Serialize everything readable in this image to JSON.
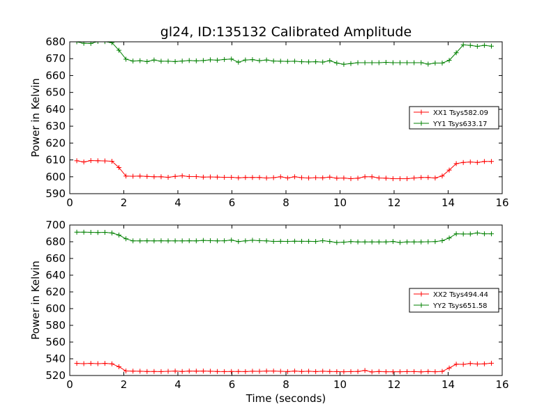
{
  "figure": {
    "title": "gl24, ID:135132 Calibrated Amplitude",
    "xlabel": "Time (seconds)"
  },
  "chart_data": [
    {
      "type": "line",
      "ylabel": "Power in Kelvin",
      "xlim": [
        0,
        16
      ],
      "ylim": [
        590,
        680
      ],
      "xticks": [
        0,
        2,
        4,
        6,
        8,
        10,
        12,
        14,
        16
      ],
      "yticks": [
        590,
        600,
        610,
        620,
        630,
        640,
        650,
        660,
        670,
        680
      ],
      "grid": false,
      "legend_position": "center-right",
      "x": [
        0.26,
        0.52,
        0.78,
        1.04,
        1.3,
        1.56,
        1.82,
        2.08,
        2.34,
        2.6,
        2.86,
        3.12,
        3.38,
        3.64,
        3.9,
        4.16,
        4.42,
        4.68,
        4.94,
        5.2,
        5.46,
        5.72,
        5.98,
        6.24,
        6.5,
        6.76,
        7.02,
        7.28,
        7.54,
        7.8,
        8.06,
        8.32,
        8.58,
        8.84,
        9.1,
        9.36,
        9.62,
        9.88,
        10.14,
        10.4,
        10.66,
        10.92,
        11.18,
        11.44,
        11.7,
        11.96,
        12.22,
        12.48,
        12.74,
        13.0,
        13.26,
        13.52,
        13.78,
        14.04,
        14.3,
        14.56,
        14.82,
        15.08,
        15.34,
        15.6
      ],
      "series": [
        {
          "name": "XX1 Tsys582.09",
          "color": "#ff0000",
          "values": [
            609.5,
            608.8,
            609.6,
            609.5,
            609.4,
            609.2,
            605.5,
            600.4,
            600.3,
            600.4,
            600.2,
            600.0,
            600.0,
            599.7,
            600.2,
            600.6,
            600.1,
            600.1,
            599.8,
            599.9,
            599.8,
            599.7,
            599.7,
            599.4,
            599.6,
            599.6,
            599.6,
            599.3,
            599.5,
            600.0,
            599.3,
            600.0,
            599.5,
            599.3,
            599.5,
            599.4,
            599.8,
            599.2,
            599.3,
            598.9,
            599.2,
            600.0,
            600.0,
            599.3,
            599.2,
            598.9,
            598.9,
            598.9,
            599.3,
            599.6,
            599.6,
            599.3,
            600.5,
            604.0,
            607.8,
            608.5,
            608.8,
            608.5,
            609.1,
            609.1
          ]
        },
        {
          "name": "YY1 Tsys633.17",
          "color": "#008000",
          "values": [
            680.0,
            679.1,
            679.0,
            680.2,
            680.1,
            679.5,
            675.0,
            669.7,
            668.6,
            668.8,
            668.3,
            669.2,
            668.5,
            668.5,
            668.3,
            668.6,
            668.9,
            668.7,
            668.9,
            669.3,
            669.1,
            669.5,
            669.8,
            667.9,
            669.2,
            669.4,
            668.8,
            669.2,
            668.6,
            668.5,
            668.4,
            668.5,
            668.2,
            668.1,
            668.2,
            668.0,
            668.8,
            667.4,
            666.7,
            667.1,
            667.6,
            667.6,
            667.6,
            667.6,
            667.8,
            667.6,
            667.6,
            667.6,
            667.6,
            667.6,
            666.8,
            667.4,
            667.4,
            669.0,
            673.5,
            678.2,
            677.9,
            677.3,
            677.9,
            677.4
          ]
        }
      ]
    },
    {
      "type": "line",
      "ylabel": "Power in Kelvin",
      "xlabel": "Time (seconds)",
      "xlim": [
        0,
        16
      ],
      "ylim": [
        520,
        700
      ],
      "xticks": [
        0,
        2,
        4,
        6,
        8,
        10,
        12,
        14,
        16
      ],
      "yticks": [
        520,
        540,
        560,
        580,
        600,
        620,
        640,
        660,
        680,
        700
      ],
      "grid": false,
      "legend_position": "center-right",
      "x": [
        0.26,
        0.52,
        0.78,
        1.04,
        1.3,
        1.56,
        1.82,
        2.08,
        2.34,
        2.6,
        2.86,
        3.12,
        3.38,
        3.64,
        3.9,
        4.16,
        4.42,
        4.68,
        4.94,
        5.2,
        5.46,
        5.72,
        5.98,
        6.24,
        6.5,
        6.76,
        7.02,
        7.28,
        7.54,
        7.8,
        8.06,
        8.32,
        8.58,
        8.84,
        9.1,
        9.36,
        9.62,
        9.88,
        10.14,
        10.4,
        10.66,
        10.92,
        11.18,
        11.44,
        11.7,
        11.96,
        12.22,
        12.48,
        12.74,
        13.0,
        13.26,
        13.52,
        13.78,
        14.04,
        14.3,
        14.56,
        14.82,
        15.08,
        15.34,
        15.6
      ],
      "series": [
        {
          "name": "XX2 Tsys494.44",
          "color": "#ff0000",
          "values": [
            534.5,
            534.2,
            534.5,
            534.2,
            534.5,
            534.0,
            530.5,
            525.4,
            525.2,
            525.1,
            524.8,
            524.8,
            524.7,
            525.0,
            525.3,
            524.8,
            525.3,
            525.2,
            525.3,
            525.1,
            524.8,
            524.7,
            524.8,
            524.8,
            524.7,
            525.1,
            525.0,
            525.3,
            525.3,
            525.0,
            524.7,
            525.3,
            524.8,
            525.1,
            524.7,
            525.1,
            524.8,
            524.7,
            524.5,
            524.7,
            524.8,
            526.0,
            524.3,
            524.8,
            524.5,
            524.5,
            524.5,
            524.7,
            524.7,
            524.4,
            524.8,
            524.5,
            524.9,
            529.0,
            533.5,
            533.3,
            534.4,
            533.8,
            534.0,
            534.7
          ]
        },
        {
          "name": "YY2 Tsys651.58",
          "color": "#008000",
          "values": [
            691.5,
            691.5,
            691.3,
            691.0,
            691.2,
            690.5,
            688.0,
            683.5,
            681.0,
            681.0,
            681.1,
            681.0,
            681.1,
            681.0,
            681.0,
            681.0,
            681.1,
            681.0,
            681.6,
            681.3,
            681.0,
            681.1,
            682.0,
            680.2,
            681.0,
            681.8,
            681.2,
            681.0,
            680.4,
            680.5,
            680.4,
            680.6,
            680.5,
            680.5,
            680.3,
            681.2,
            680.3,
            679.1,
            679.5,
            680.2,
            679.8,
            679.8,
            679.8,
            679.8,
            679.8,
            680.3,
            679.1,
            679.8,
            679.8,
            679.8,
            680.0,
            680.2,
            681.2,
            684.5,
            689.5,
            689.3,
            689.3,
            690.5,
            689.5,
            689.5
          ]
        }
      ]
    }
  ]
}
